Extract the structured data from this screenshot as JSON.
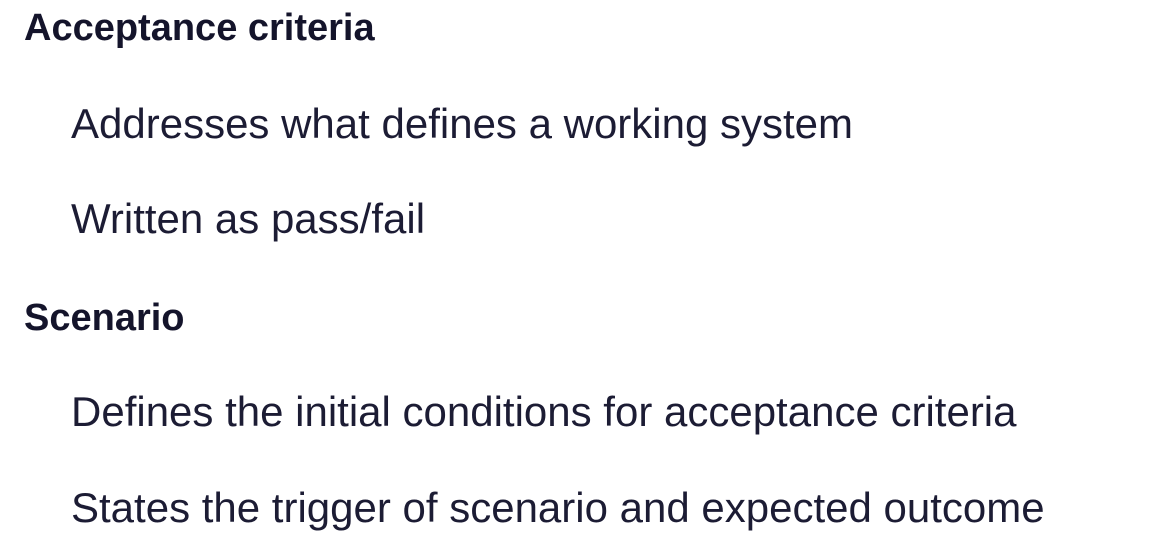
{
  "sections": [
    {
      "heading": "Acceptance criteria",
      "points": [
        "Addresses what defines a working system",
        "Written as pass/fail"
      ]
    },
    {
      "heading": "Scenario",
      "points": [
        "Defines the initial conditions for acceptance criteria",
        "States the trigger of scenario and expected outcome"
      ]
    }
  ]
}
